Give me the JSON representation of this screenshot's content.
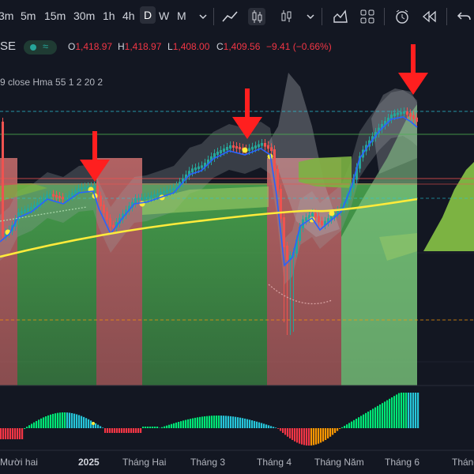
{
  "toolbar": {
    "timeframes": [
      {
        "label": "3m",
        "active": false
      },
      {
        "label": "5m",
        "active": false
      },
      {
        "label": "15m",
        "active": false
      },
      {
        "label": "30m",
        "active": false
      },
      {
        "label": "1h",
        "active": false
      },
      {
        "label": "4h",
        "active": false
      },
      {
        "label": "D",
        "active": true
      },
      {
        "label": "W",
        "active": false
      },
      {
        "label": "M",
        "active": false
      }
    ],
    "icons": [
      "chevron-down-icon",
      "line-chart-icon",
      "candles-icon",
      "chevron-down-icon",
      "indicators-icon",
      "templates-icon",
      "alert-icon",
      "replay-icon",
      "undo-icon"
    ]
  },
  "legend": {
    "symbol": "SE",
    "o_label": "O",
    "o": "1,418.97",
    "h_label": "H",
    "h": "1,418.97",
    "l_label": "L",
    "l": "1,408.00",
    "c_label": "C",
    "c": "1,409.56",
    "change": "−9.41 (−0.66%)"
  },
  "indicator_label": "9 close Hma 55 1 2 20 2",
  "chart_data": {
    "type": "candlestick",
    "title": "",
    "series": [
      {
        "name": "price",
        "kind": "candles"
      },
      {
        "name": "",
        "kind": "line",
        "color": "#2962ff"
      },
      {
        "name": "",
        "kind": "line",
        "color": "#ffeb3b"
      }
    ],
    "x_ticks": [
      "Mười hai",
      "2025",
      "Tháng Hai",
      "Tháng 3",
      "Tháng 4",
      "Tháng Năm",
      "Tháng 6",
      "Tháng"
    ],
    "y_approx": {
      "last_close": 1409.56,
      "high": 1418.97,
      "low": 1408.0
    },
    "annotations": [
      {
        "type": "arrow",
        "color": "#ff1f1f",
        "position": "early-Jan"
      },
      {
        "type": "arrow",
        "color": "#ff1f1f",
        "position": "mid-Mar"
      },
      {
        "type": "arrow",
        "color": "#ff1f1f",
        "position": "early-Jun"
      }
    ],
    "oscillator": {
      "type": "histogram",
      "colors": [
        "#ff9800",
        "#f23645",
        "#00e676",
        "#26c6da",
        "#ffeb3b"
      ]
    },
    "grid": true,
    "cloud_colors": {
      "bull": "#4caf50",
      "bear": "#ef5350"
    }
  },
  "xaxis": {
    "ticks": [
      {
        "label": "Mười hai",
        "bold": false
      },
      {
        "label": "2025",
        "bold": true
      },
      {
        "label": "Tháng Hai",
        "bold": false
      },
      {
        "label": "Tháng 3",
        "bold": false
      },
      {
        "label": "Tháng 4",
        "bold": false
      },
      {
        "label": "Tháng Năm",
        "bold": false
      },
      {
        "label": "Tháng 6",
        "bold": false
      },
      {
        "label": "Tháng",
        "bold": false
      }
    ]
  }
}
